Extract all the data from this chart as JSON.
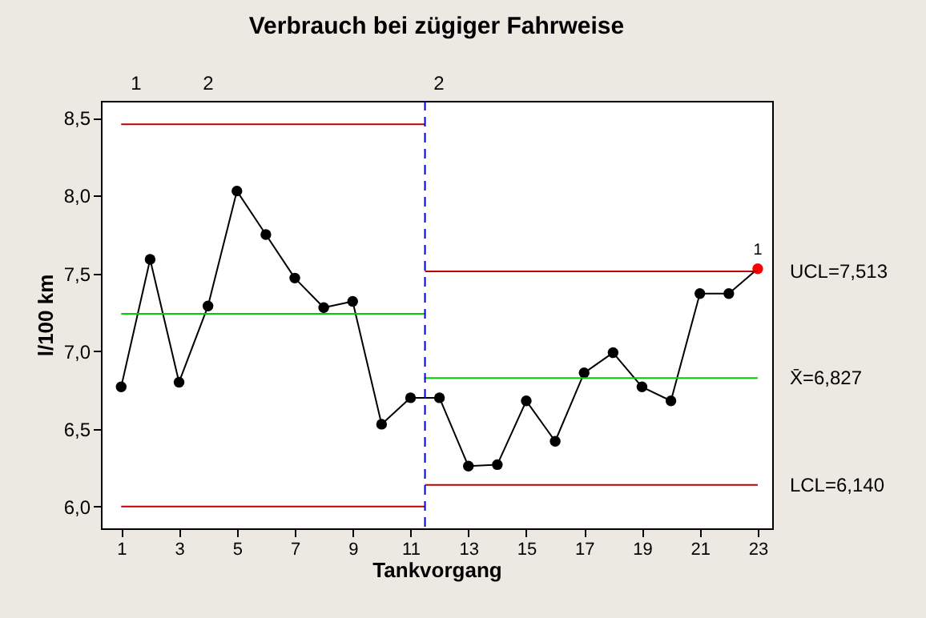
{
  "chart_data": {
    "type": "line",
    "title": "Verbrauch bei zügiger Fahrweise",
    "xlabel": "Tankvorgang",
    "ylabel": "l/100 km",
    "xlim": [
      0.3,
      23.5
    ],
    "xticks": [
      1,
      3,
      5,
      7,
      9,
      11,
      13,
      15,
      17,
      19,
      21,
      23
    ],
    "ylim": [
      5.86,
      8.61
    ],
    "yticks": [
      {
        "value": 6,
        "label": "6,0"
      },
      {
        "value": 6.5,
        "label": "6,5"
      },
      {
        "value": 7,
        "label": "7,0"
      },
      {
        "value": 7.5,
        "label": "7,5"
      },
      {
        "value": 8,
        "label": "8,0"
      },
      {
        "value": 8.5,
        "label": "8,5"
      }
    ],
    "grid": false,
    "marker": "circle",
    "series": [
      {
        "color": "#000000",
        "x": [
          1,
          2,
          3,
          4,
          5,
          6,
          7,
          8,
          9,
          10,
          11,
          12,
          13,
          14,
          15,
          16,
          17,
          18,
          19,
          20,
          21,
          22,
          23
        ],
        "values": [
          6.77,
          7.59,
          6.8,
          7.29,
          8.03,
          7.75,
          7.47,
          7.28,
          7.32,
          6.53,
          6.7,
          6.7,
          6.26,
          6.27,
          6.68,
          6.42,
          6.86,
          6.99,
          6.77,
          6.68,
          7.37,
          7.37,
          7.53
        ],
        "colors": [
          "#000000",
          "#000000",
          "#000000",
          "#000000",
          "#000000",
          "#000000",
          "#000000",
          "#000000",
          "#000000",
          "#000000",
          "#000000",
          "#000000",
          "#000000",
          "#000000",
          "#000000",
          "#000000",
          "#000000",
          "#000000",
          "#000000",
          "#000000",
          "#000000",
          "#000000",
          "#ff0000"
        ]
      },
      {
        "type": "line",
        "marker": "none",
        "color": "#c00000",
        "x": [
          1,
          11.5
        ],
        "values": [
          8.46,
          8.46
        ]
      },
      {
        "type": "line",
        "marker": "none",
        "color": "#00cc00",
        "x": [
          1,
          11.5
        ],
        "values": [
          7.24,
          7.24
        ]
      },
      {
        "type": "line",
        "marker": "none",
        "color": "#c00000",
        "x": [
          1,
          11.5
        ],
        "values": [
          6.0,
          6.0
        ]
      },
      {
        "type": "line",
        "marker": "none",
        "name": "UCL=7,513",
        "color": "#c00000",
        "x": [
          11.5,
          23
        ],
        "values": [
          7.513,
          7.513
        ]
      },
      {
        "type": "line",
        "marker": "none",
        "name": "X̄=6,827",
        "color": "#00cc00",
        "x": [
          11.5,
          23
        ],
        "values": [
          6.827,
          6.827
        ]
      },
      {
        "type": "line",
        "marker": "none",
        "name": "LCL=6,140",
        "color": "#c00000",
        "x": [
          11.5,
          23
        ],
        "values": [
          6.14,
          6.14
        ]
      }
    ],
    "ref_lines": [
      {
        "axis": "x",
        "value": 11.5,
        "color": "#0000cc",
        "line_style": "dashed"
      }
    ],
    "annotations": [
      {
        "text": "1",
        "x": 23,
        "y": 7.53
      },
      "1",
      "2",
      "2"
    ]
  }
}
